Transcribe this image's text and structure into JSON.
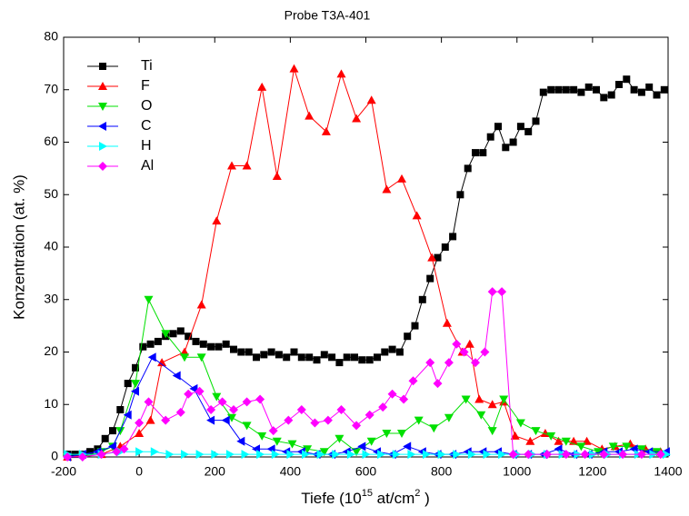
{
  "chart_data": {
    "type": "line",
    "title": "Probe T3A-401",
    "xlabel": [
      "Tiefe (10",
      "15",
      " at/cm",
      "2",
      " )"
    ],
    "ylabel": "Konzentration (at. %)",
    "xlim": [
      -200,
      1400
    ],
    "xticks": [
      -200,
      0,
      200,
      400,
      600,
      800,
      1000,
      1200,
      1400
    ],
    "ylim": [
      0,
      80
    ],
    "yticks": [
      0,
      10,
      20,
      30,
      40,
      50,
      60,
      70,
      80
    ],
    "legend": "upper left",
    "series": [
      {
        "name": "Ti",
        "color": "#000000",
        "marker": "square",
        "x": [
          -190,
          -170,
          -150,
          -130,
          -110,
          -90,
          -70,
          -50,
          -30,
          -10,
          10,
          30,
          50,
          70,
          90,
          110,
          130,
          150,
          170,
          190,
          210,
          230,
          250,
          270,
          290,
          310,
          330,
          350,
          370,
          390,
          410,
          430,
          450,
          470,
          490,
          510,
          530,
          550,
          570,
          590,
          610,
          630,
          650,
          670,
          690,
          710,
          730,
          750,
          770,
          790,
          810,
          830,
          850,
          870,
          890,
          910,
          930,
          950,
          970,
          990,
          1010,
          1030,
          1050,
          1070,
          1090,
          1110,
          1130,
          1150,
          1170,
          1190,
          1210,
          1230,
          1250,
          1270,
          1290,
          1310,
          1330,
          1350,
          1370,
          1390
        ],
        "values": [
          0.5,
          0.5,
          0.5,
          1,
          1.5,
          3.5,
          5,
          9,
          14,
          17,
          21,
          21.5,
          22,
          23,
          23.5,
          24,
          23,
          22,
          21.5,
          21,
          21,
          21.5,
          20.5,
          20,
          20,
          19,
          19.5,
          20,
          19.5,
          19,
          20,
          19,
          19,
          18.5,
          19.5,
          19,
          18,
          19,
          19,
          18.5,
          18.5,
          19,
          20,
          20.5,
          20,
          23,
          25,
          30,
          34,
          38,
          40,
          42,
          50,
          55,
          58,
          58,
          61,
          63,
          59,
          60,
          63,
          62,
          64,
          69.5,
          70,
          70,
          70,
          70,
          69.5,
          70.5,
          70,
          68.5,
          69,
          71,
          72,
          70,
          69.5,
          70.5,
          69,
          70
        ]
      },
      {
        "name": "F",
        "color": "#ff0000",
        "marker": "triangle-up",
        "x": [
          -190,
          -100,
          -50,
          0,
          30,
          60,
          120,
          165,
          205,
          245,
          285,
          325,
          365,
          410,
          450,
          495,
          535,
          575,
          615,
          655,
          695,
          735,
          775,
          815,
          855,
          875,
          900,
          935,
          965,
          995,
          1035,
          1075,
          1110,
          1150,
          1185,
          1225,
          1260,
          1300,
          1340,
          1380
        ],
        "values": [
          0,
          0.5,
          2,
          4.5,
          7,
          18,
          20,
          29,
          45,
          55.5,
          55.5,
          70.5,
          53.5,
          74,
          65,
          62,
          73,
          64.5,
          68,
          51,
          53,
          46,
          38,
          25.5,
          20,
          21.5,
          11,
          10,
          10.5,
          4,
          3,
          4.5,
          3,
          3,
          3,
          1.5,
          2,
          2.5,
          1.5,
          1
        ]
      },
      {
        "name": "O",
        "color": "#00e000",
        "marker": "triangle-down",
        "x": [
          -190,
          -150,
          -100,
          -70,
          -50,
          -10,
          25,
          70,
          120,
          165,
          205,
          245,
          285,
          325,
          365,
          405,
          445,
          490,
          530,
          575,
          615,
          655,
          695,
          740,
          780,
          820,
          865,
          905,
          935,
          965,
          1010,
          1050,
          1090,
          1130,
          1170,
          1215,
          1255,
          1290,
          1330,
          1370
        ],
        "values": [
          0,
          0,
          1,
          2,
          5,
          14,
          30,
          23.5,
          19,
          19,
          11.5,
          7.5,
          6,
          4,
          3,
          2.5,
          1.5,
          1,
          3.5,
          1,
          3,
          4.5,
          4.5,
          7,
          5.5,
          7.5,
          11,
          8,
          5,
          11,
          6.5,
          5,
          4,
          3,
          2,
          1,
          2,
          2,
          1.5,
          1
        ]
      },
      {
        "name": "C",
        "color": "#0000ff",
        "marker": "triangle-left",
        "x": [
          -190,
          -150,
          -110,
          -70,
          -30,
          -10,
          35,
          100,
          145,
          190,
          230,
          270,
          310,
          350,
          390,
          430,
          470,
          510,
          550,
          590,
          630,
          670,
          710,
          750,
          790,
          830,
          870,
          910,
          950,
          990,
          1030,
          1070,
          1110,
          1150,
          1190,
          1230,
          1270,
          1310,
          1350,
          1395
        ],
        "values": [
          0,
          0.5,
          1,
          2,
          8,
          12.5,
          19,
          15.5,
          13,
          7,
          7,
          3,
          1.5,
          1.5,
          1,
          1,
          0.5,
          0.5,
          1,
          2,
          1,
          0.5,
          2,
          1,
          0.5,
          0.5,
          1,
          1,
          1,
          0.5,
          0.5,
          0.5,
          1.5,
          0.5,
          0.5,
          1,
          1,
          1.5,
          1,
          1
        ]
      },
      {
        "name": "H",
        "color": "#00ffff",
        "marker": "triangle-right",
        "x": [
          -190,
          -150,
          -100,
          -50,
          0,
          40,
          80,
          120,
          160,
          200,
          240,
          280,
          320,
          360,
          400,
          440,
          480,
          520,
          560,
          600,
          640,
          680,
          720,
          760,
          800,
          840,
          880,
          920,
          960,
          1000,
          1040,
          1080,
          1120,
          1160,
          1200,
          1240,
          1280,
          1320,
          1360,
          1395
        ],
        "values": [
          0.5,
          0.5,
          0.5,
          1,
          1,
          1,
          0.5,
          0.5,
          0.5,
          0.5,
          0.5,
          0.5,
          0.5,
          0.5,
          0.5,
          0.5,
          0.5,
          0.5,
          0.5,
          0.5,
          0.5,
          0.5,
          0.5,
          0.5,
          0.5,
          0.5,
          0.5,
          0.5,
          0.5,
          0.5,
          0.5,
          0.5,
          0.5,
          0.5,
          0.5,
          0.5,
          0.5,
          0.5,
          0.5,
          0.5
        ]
      },
      {
        "name": "Al",
        "color": "#ff00ff",
        "marker": "diamond",
        "x": [
          -190,
          -150,
          -100,
          -60,
          -40,
          0,
          25,
          70,
          110,
          130,
          160,
          190,
          220,
          250,
          285,
          320,
          355,
          395,
          430,
          465,
          500,
          535,
          575,
          610,
          645,
          670,
          700,
          725,
          770,
          790,
          820,
          840,
          860,
          890,
          915,
          935,
          960,
          990,
          1030,
          1080,
          1130,
          1180,
          1230,
          1280,
          1330,
          1380
        ],
        "values": [
          0,
          0,
          0.5,
          1,
          1.5,
          6.5,
          10.5,
          7,
          8.5,
          12,
          12.5,
          9,
          10.5,
          9,
          10.5,
          11,
          5,
          7,
          9,
          6.5,
          7,
          9,
          6,
          8,
          9.5,
          12,
          11,
          14.5,
          18,
          14,
          18,
          21.5,
          20,
          18,
          20,
          31.5,
          31.5,
          0.5,
          0.5,
          0.5,
          0.5,
          0.5,
          0.5,
          0.5,
          0.5,
          0.5
        ]
      }
    ]
  }
}
